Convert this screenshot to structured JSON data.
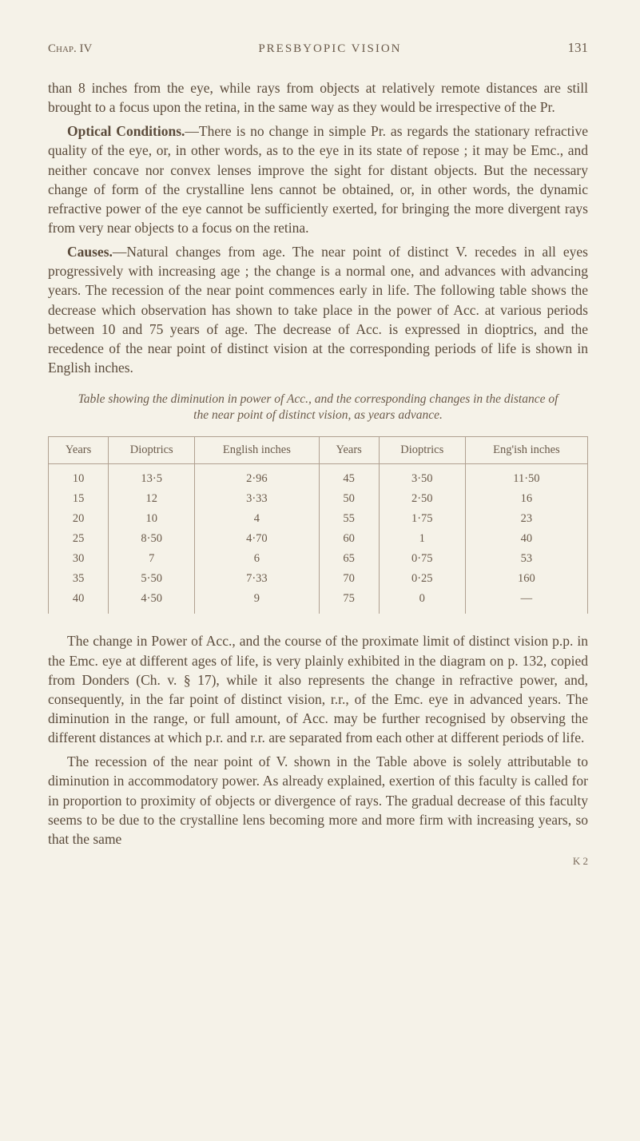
{
  "header": {
    "chapter": "Chap. IV",
    "title": "PRESBYOPIC VISION",
    "page": "131"
  },
  "para1": "than 8 inches from the eye, while rays from objects at relatively remote distances are still brought to a focus upon the retina, in the same way as they would be irrespective of the Pr.",
  "para2_lead": "Optical Conditions.",
  "para2": "—There is no change in simple Pr. as regards the stationary refractive quality of the eye, or, in other words, as to the eye in its state of repose ; it may be Emc., and neither concave nor convex lenses improve the sight for distant objects. But the necessary change of form of the crystalline lens cannot be obtained, or, in other words, the dynamic refractive power of the eye cannot be sufficiently exerted, for bringing the more divergent rays from very near objects to a focus on the retina.",
  "para3_lead": "Causes.",
  "para3": "—Natural changes from age. The near point of distinct V. recedes in all eyes progressively with increasing age ; the change is a normal one, and advances with advancing years. The recession of the near point commences early in life. The following table shows the decrease which observation has shown to take place in the power of Acc. at various periods between 10 and 75 years of age. The decrease of Acc. is expressed in dioptrics, and the recedence of the near point of distinct vision at the corresponding periods of life is shown in English inches.",
  "table_caption": "Table showing the diminution in power of Acc., and the corresponding changes in the distance of the near point of distinct vision, as years advance.",
  "table": {
    "columns": [
      "Years",
      "Dioptrics",
      "English inches",
      "Years",
      "Dioptrics",
      "Eng'ish inches"
    ],
    "rows": [
      [
        "10",
        "13·5",
        "2·96",
        "45",
        "3·50",
        "11·50"
      ],
      [
        "15",
        "12",
        "3·33",
        "50",
        "2·50",
        "16"
      ],
      [
        "20",
        "10",
        "4",
        "55",
        "1·75",
        "23"
      ],
      [
        "25",
        "8·50",
        "4·70",
        "60",
        "1",
        "40"
      ],
      [
        "30",
        "7",
        "6",
        "65",
        "0·75",
        "53"
      ],
      [
        "35",
        "5·50",
        "7·33",
        "70",
        "0·25",
        "160"
      ],
      [
        "40",
        "4·50",
        "9",
        "75",
        "0",
        "—"
      ]
    ]
  },
  "para4": "The change in Power of Acc., and the course of the proximate limit of distinct vision p.p. in the Emc. eye at different ages of life, is very plainly exhibited in the diagram on p. 132, copied from Donders (Ch. v. § 17), while it also represents the change in refractive power, and, consequently, in the far point of distinct vision, r.r., of the Emc. eye in advanced years. The diminution in the range, or full amount, of Acc. may be further recognised by observing the different distances at which p.r. and r.r. are separated from each other at different periods of life.",
  "para5": "The recession of the near point of V. shown in the Table above is solely attributable to diminution in accommodatory power. As already explained, exertion of this faculty is called for in proportion to proximity of objects or divergence of rays. The gradual decrease of this faculty seems to be due to the crystalline lens becoming more and more firm with increasing years, so that the same",
  "footer": "K 2"
}
